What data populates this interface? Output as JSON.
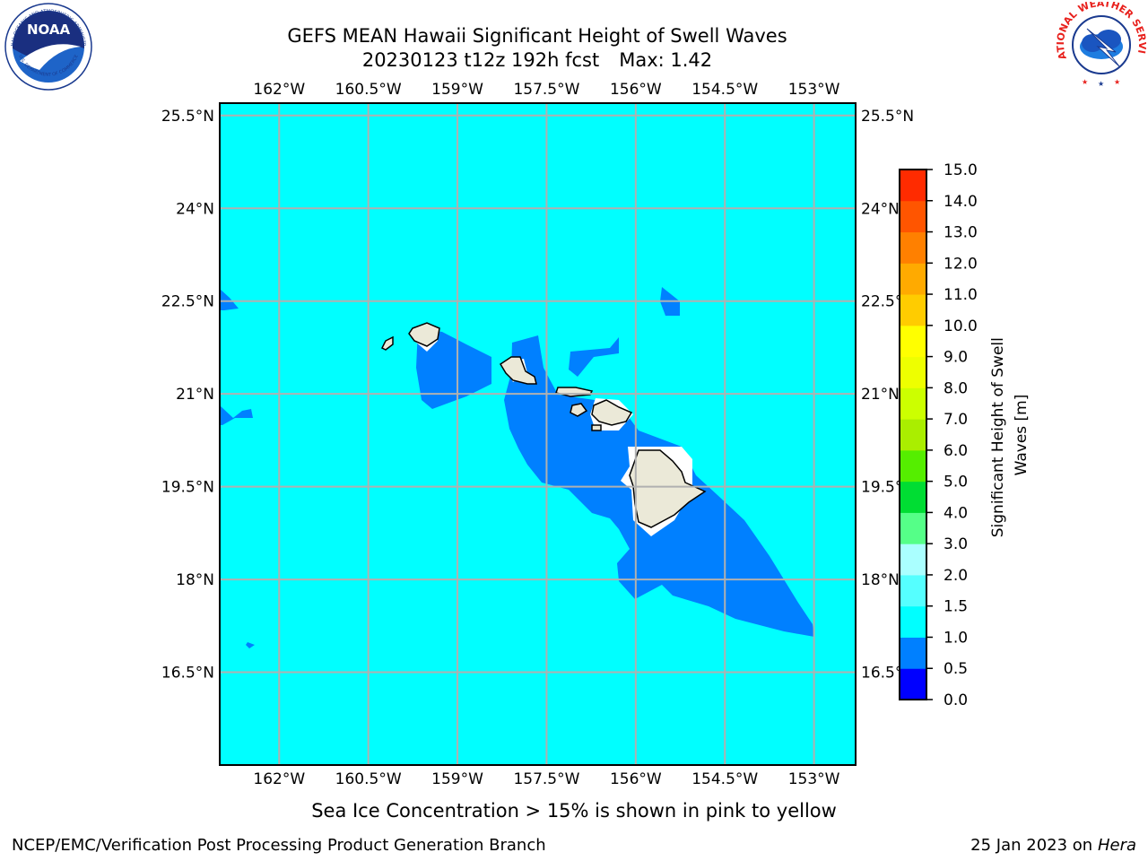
{
  "title": {
    "line1": "GEFS MEAN Hawaii Significant Height of Swell Waves",
    "run": "20230123 t12z 192h fcst",
    "max": "Max: 1.42"
  },
  "map": {
    "lon_labels": [
      "162°W",
      "160.5°W",
      "159°W",
      "157.5°W",
      "156°W",
      "154.5°W",
      "153°W"
    ],
    "lon_values": [
      -162,
      -160.5,
      -159,
      -157.5,
      -156,
      -154.5,
      -153
    ],
    "lat_labels": [
      "25.5°N",
      "24°N",
      "22.5°N",
      "21°N",
      "19.5°N",
      "18°N",
      "16.5°N"
    ],
    "lat_values": [
      25.5,
      24,
      22.5,
      21,
      19.5,
      18,
      16.5
    ],
    "lon_range": [
      -163,
      -152.3
    ],
    "lat_range": [
      15.0,
      25.7
    ],
    "ocean_color": "#00ffff",
    "swell_color": "#0080ff",
    "land_color": "#ebe9d8",
    "grid": true
  },
  "colorbar": {
    "label": "Significant Height of Swell Waves [m]",
    "levels": [
      "0.0",
      "0.5",
      "1.0",
      "1.5",
      "2.0",
      "3.0",
      "4.0",
      "5.0",
      "6.0",
      "7.0",
      "8.0",
      "9.0",
      "10.0",
      "11.0",
      "12.0",
      "13.0",
      "14.0",
      "15.0"
    ],
    "colors": [
      "#0000ff",
      "#0080ff",
      "#00ffff",
      "#55ffff",
      "#aaffff",
      "#55ff88",
      "#00dd33",
      "#55ee00",
      "#aaee00",
      "#ccff00",
      "#eeff00",
      "#ffff00",
      "#ffcc00",
      "#ffaa00",
      "#ff8000",
      "#ff5500",
      "#ff2b00"
    ]
  },
  "footnote": "Sea Ice Concentration > 15% is shown in pink to yellow",
  "footer": {
    "left": "NCEP/EMC/Verification Post Processing Product Generation Branch",
    "right_date": "25 Jan 2023 on",
    "right_host": "Hera"
  },
  "logos": {
    "noaa_text": "NOAA",
    "noaa_ring": "NATIONAL OCEANIC AND ATMOSPHERIC ADMINISTRATION",
    "noaa_bottom": "U.S. DEPARTMENT OF COMMERCE",
    "nws_ring": "NATIONAL WEATHER SERVICE"
  }
}
